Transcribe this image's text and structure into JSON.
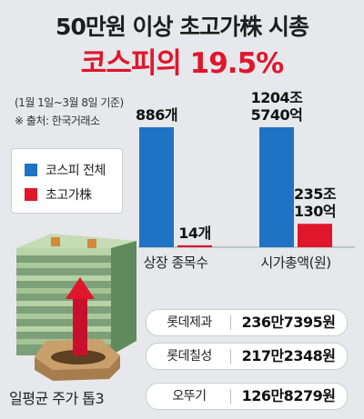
{
  "title_line1": "50만원 이상 초고가株 시총",
  "title_line2": "코스피의 19.5%",
  "note_period": "(1월 1일~3월 8일 기준)",
  "note_source": "※ 출처: 한국거래소",
  "colors": {
    "kospi": "#1f73c4",
    "expensive": "#e0162b",
    "title_red": "#e0162b"
  },
  "chart_data": [
    {
      "type": "bar",
      "categories": [
        "상장 종목수"
      ],
      "series": [
        {
          "name": "코스피 전체",
          "values": [
            886
          ],
          "labels": [
            "886개"
          ]
        },
        {
          "name": "초고가株",
          "values": [
            14
          ],
          "labels": [
            "14개"
          ]
        }
      ]
    },
    {
      "type": "bar",
      "categories": [
        "시가총액(원)"
      ],
      "series": [
        {
          "name": "코스피 전체",
          "values": [
            12045740
          ],
          "unit": "억원",
          "labels": [
            "1204조\n5740억"
          ]
        },
        {
          "name": "초고가株",
          "values": [
            2350130
          ],
          "unit": "억원",
          "labels": [
            "235조\n130억"
          ]
        }
      ]
    }
  ],
  "legend": [
    {
      "label": "코스피 전체",
      "color": "#1f73c4"
    },
    {
      "label": "초고가株",
      "color": "#e0162b"
    }
  ],
  "top3": {
    "caption": "일평균 주가 톱3",
    "items": [
      {
        "name": "롯데제과",
        "price": "236만7395원"
      },
      {
        "name": "롯데칠성",
        "price": "217만2348원"
      },
      {
        "name": "오뚜기",
        "price": "126만8279원"
      }
    ]
  }
}
